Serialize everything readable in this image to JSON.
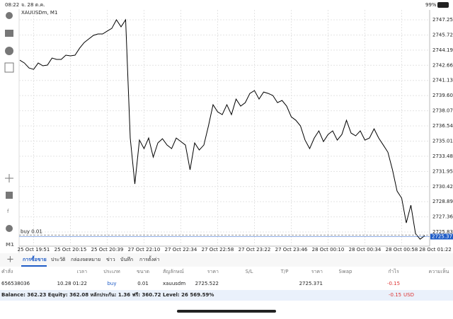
{
  "status_bar": {
    "time": "08:22",
    "date": "จ. 28 ต.ค.",
    "battery": "99%"
  },
  "toolbar": {
    "timeframe": "M1"
  },
  "chart_data": {
    "type": "line",
    "symbol": "XAUUSDm, M1",
    "categories": [
      null,
      null,
      null,
      "25 Oct 19:51",
      null,
      null,
      null,
      null,
      null,
      null,
      null,
      "25 Oct 20:15",
      null,
      null,
      null,
      null,
      null,
      null,
      null,
      "25 Oct 20:39",
      null,
      null,
      null,
      null,
      null,
      null,
      null,
      "27 Oct 22:10",
      null,
      null,
      null,
      null,
      null,
      null,
      null,
      "27 Oct 22:34",
      null,
      null,
      null,
      null,
      null,
      null,
      null,
      "27 Oct 22:58",
      null,
      null,
      null,
      null,
      null,
      null,
      null,
      "27 Oct 23:22",
      null,
      null,
      null,
      null,
      null,
      null,
      null,
      "27 Oct 23:46",
      null,
      null,
      null,
      null,
      null,
      null,
      null,
      "28 Oct 00:10",
      null,
      null,
      null,
      null,
      null,
      null,
      null,
      "28 Oct 00:34",
      null,
      null,
      null,
      null,
      null,
      null,
      null,
      "28 Oct 00:58",
      null,
      null,
      null,
      null,
      null,
      null,
      null,
      "28 Oct 01:22"
    ],
    "series": [
      {
        "color": "#000000",
        "values": [
          2743.18,
          2742.89,
          2742.39,
          2742.25,
          2742.89,
          2742.61,
          2742.68,
          2743.39,
          2743.25,
          2743.25,
          2743.68,
          2743.61,
          2743.68,
          2744.39,
          2744.96,
          2745.32,
          2745.68,
          2745.82,
          2745.82,
          2746.11,
          2746.39,
          2747.25,
          2746.54,
          2747.25,
          2735.32,
          2730.68,
          2735.11,
          2734.25,
          2735.32,
          2733.39,
          2734.82,
          2735.25,
          2734.61,
          2734.25,
          2735.32,
          2734.96,
          2734.61,
          2732.11,
          2734.82,
          2734.11,
          2734.61,
          2736.54,
          2738.68,
          2737.96,
          2737.68,
          2738.68,
          2737.68,
          2739.25,
          2738.54,
          2738.89,
          2739.82,
          2740.11,
          2739.25,
          2739.96,
          2739.82,
          2739.61,
          2738.89,
          2739.11,
          2738.54,
          2737.46,
          2737.11,
          2736.54,
          2735.11,
          2734.25,
          2735.32,
          2736.04,
          2734.96,
          2735.68,
          2736.04,
          2735.11,
          2735.68,
          2737.11,
          2735.82,
          2735.54,
          2736.04,
          2735.11,
          2735.32,
          2736.25,
          2735.32,
          2734.61,
          2733.89,
          2732.11,
          2729.96,
          2729.25,
          2726.75,
          2728.54,
          2725.68,
          2725.11,
          2725.46,
          null,
          null,
          null
        ]
      }
    ],
    "ylim": [
      2724.62,
      2748.25
    ],
    "yticks": [
      {
        "value": 2725.83,
        "label": "2725.830"
      },
      {
        "value": 2727.36,
        "label": "2727.360"
      },
      {
        "value": 2728.89,
        "label": "2728.890"
      },
      {
        "value": 2730.42,
        "label": "2730.420"
      },
      {
        "value": 2731.95,
        "label": "2731.950"
      },
      {
        "value": 2733.48,
        "label": "2733.480"
      },
      {
        "value": 2735.01,
        "label": "2735.010"
      },
      {
        "value": 2736.54,
        "label": "2736.540"
      },
      {
        "value": 2738.07,
        "label": "2738.070"
      },
      {
        "value": 2739.6,
        "label": "2739.600"
      },
      {
        "value": 2741.13,
        "label": "2741.130"
      },
      {
        "value": 2742.66,
        "label": "2742.660"
      },
      {
        "value": 2744.19,
        "label": "2744.190"
      },
      {
        "value": 2745.72,
        "label": "2745.720"
      },
      {
        "value": 2747.25,
        "label": "2747.250"
      }
    ],
    "grid": true,
    "order_line": {
      "label": "buy 0.01",
      "value": 2725.522
    },
    "last_price": 2725.371,
    "last_price_color": "#1e5bc6"
  },
  "tabs": [
    "การซื้อขาย",
    "ประวัติ",
    "กล่องจดหมาย",
    "ข่าว",
    "บันทึก",
    "การตั้งค่า"
  ],
  "table": {
    "header": {
      "order": "คำสั่ง",
      "time": "เวลา",
      "type": "ประเภท",
      "size": "ขนาด",
      "symbol": "สัญลักษณ์",
      "open_price": "ราคา",
      "sl": "S/L",
      "tp": "T/P",
      "price": "ราคา",
      "swap": "Swap",
      "profit": "กำไร",
      "comment": "ความเห็น"
    },
    "rows": [
      {
        "order": "656538036",
        "time": "10.28 01:22",
        "type": "buy",
        "size": "0.01",
        "symbol": "xauusdm",
        "open_price": "2725.522",
        "price": "2725.371",
        "profit": "-0.15"
      }
    ]
  },
  "summary": {
    "text": "Balance: 362.23 Equity: 362.08 หลักประกัน: 1.36 ฟรี: 360.72 Level: 26 569.59%",
    "profit": "-0.15",
    "currency": "USD"
  }
}
